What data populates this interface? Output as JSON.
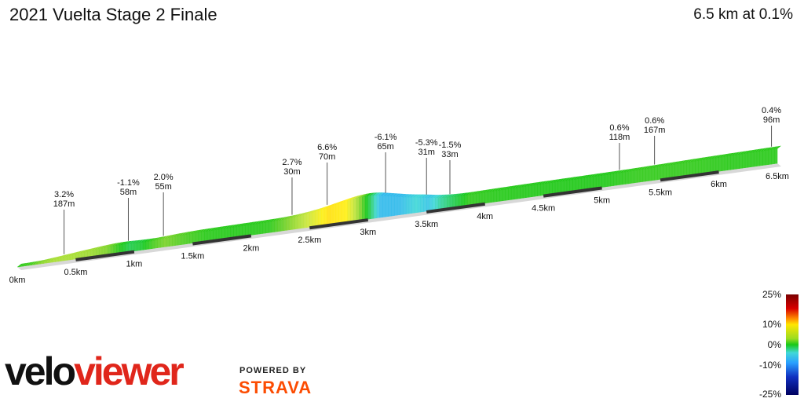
{
  "header": {
    "title": "2021 Vuelta Stage 2 Finale",
    "summary": "6.5 km at 0.1%"
  },
  "chart_data": {
    "type": "area",
    "title": "2021 Vuelta Stage 2 Finale",
    "xlabel": "",
    "ylabel": "",
    "x_unit": "km",
    "xlim": [
      0,
      6.5
    ],
    "x_ticks": [
      "0km",
      "0.5km",
      "1km",
      "1.5km",
      "2km",
      "2.5km",
      "3km",
      "3.5km",
      "4km",
      "4.5km",
      "5km",
      "5.5km",
      "6km",
      "6.5km"
    ],
    "profile": [
      {
        "km": 0.0,
        "grade": 0.5
      },
      {
        "km": 0.1,
        "grade": 1.0
      },
      {
        "km": 0.2,
        "grade": 2.5
      },
      {
        "km": 0.3,
        "grade": 3.2
      },
      {
        "km": 0.45,
        "grade": 3.2
      },
      {
        "km": 0.6,
        "grade": 3.0
      },
      {
        "km": 0.75,
        "grade": 2.2
      },
      {
        "km": 0.85,
        "grade": 0.5
      },
      {
        "km": 0.95,
        "grade": -1.1
      },
      {
        "km": 1.05,
        "grade": -0.5
      },
      {
        "km": 1.15,
        "grade": 1.0
      },
      {
        "km": 1.25,
        "grade": 2.0
      },
      {
        "km": 1.4,
        "grade": 1.2
      },
      {
        "km": 1.6,
        "grade": 0.4
      },
      {
        "km": 1.8,
        "grade": 0.3
      },
      {
        "km": 2.0,
        "grade": 0.3
      },
      {
        "km": 2.15,
        "grade": 0.5
      },
      {
        "km": 2.25,
        "grade": 1.5
      },
      {
        "km": 2.35,
        "grade": 2.7
      },
      {
        "km": 2.5,
        "grade": 4.5
      },
      {
        "km": 2.65,
        "grade": 6.6
      },
      {
        "km": 2.8,
        "grade": 6.0
      },
      {
        "km": 2.9,
        "grade": 3.0
      },
      {
        "km": 3.0,
        "grade": -1.0
      },
      {
        "km": 3.1,
        "grade": -6.1
      },
      {
        "km": 3.25,
        "grade": -6.1
      },
      {
        "km": 3.4,
        "grade": -4.0
      },
      {
        "km": 3.5,
        "grade": -5.3
      },
      {
        "km": 3.6,
        "grade": -3.0
      },
      {
        "km": 3.7,
        "grade": -1.5
      },
      {
        "km": 3.85,
        "grade": 0.5
      },
      {
        "km": 4.2,
        "grade": 0.3
      },
      {
        "km": 4.6,
        "grade": 0.2
      },
      {
        "km": 5.0,
        "grade": 0.2
      },
      {
        "km": 5.3,
        "grade": 0.6
      },
      {
        "km": 5.7,
        "grade": 0.6
      },
      {
        "km": 6.1,
        "grade": 0.4
      },
      {
        "km": 6.5,
        "grade": 0.4
      }
    ],
    "annotations": [
      {
        "km": 0.4,
        "grade": "3.2%",
        "distance": "187m",
        "labelTop": 243
      },
      {
        "km": 0.95,
        "grade": "-1.1%",
        "distance": "58m",
        "labelTop": 228
      },
      {
        "km": 1.25,
        "grade": "2.0%",
        "distance": "55m",
        "labelTop": 221
      },
      {
        "km": 2.35,
        "grade": "2.7%",
        "distance": "30m",
        "labelTop": 202
      },
      {
        "km": 2.65,
        "grade": "6.6%",
        "distance": "70m",
        "labelTop": 183
      },
      {
        "km": 3.15,
        "grade": "-6.1%",
        "distance": "65m",
        "labelTop": 170
      },
      {
        "km": 3.5,
        "grade": "-5.3%",
        "distance": "31m",
        "labelTop": 177
      },
      {
        "km": 3.7,
        "grade": "-1.5%",
        "distance": "33m",
        "labelTop": 180
      },
      {
        "km": 5.15,
        "grade": "0.6%",
        "distance": "118m",
        "labelTop": 158
      },
      {
        "km": 5.45,
        "grade": "0.6%",
        "distance": "167m",
        "labelTop": 149
      },
      {
        "km": 6.45,
        "grade": "0.4%",
        "distance": "96m",
        "labelTop": 136
      }
    ],
    "gradient_scale": {
      "labels": [
        "25%",
        "10%",
        "0%",
        "-10%",
        "-25%"
      ],
      "values": [
        25,
        10,
        0,
        -10,
        -25
      ]
    }
  },
  "branding": {
    "logo_part1": "velo",
    "logo_part2": "viewer",
    "powered_by": "POWERED BY",
    "strava": "STRAVA"
  }
}
